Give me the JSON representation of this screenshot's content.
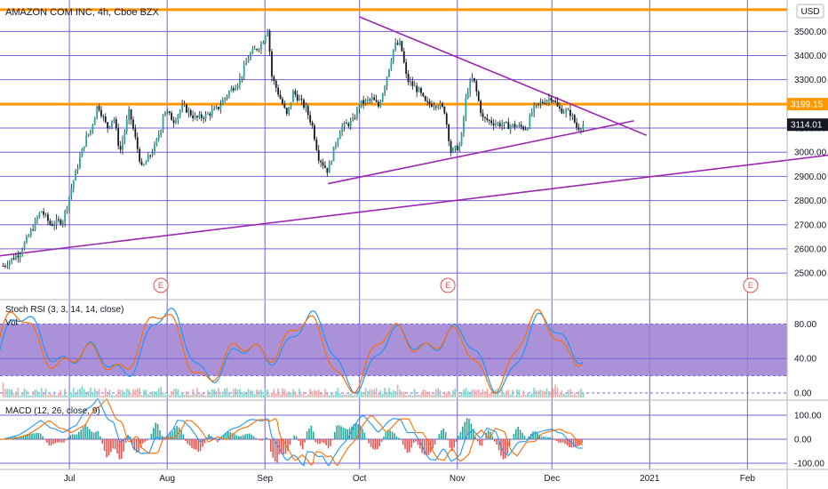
{
  "chart_data": {
    "type": "candlestick",
    "title": "AMAZON COM INC, 4h, Cboe BZX",
    "currency": "USD",
    "x_tick_labels": [
      "Jul",
      "Aug",
      "Sep",
      "Oct",
      "Nov",
      "Dec",
      "2021",
      "Feb"
    ],
    "price_axis": {
      "ticks": [
        2500,
        2600,
        2700,
        2800,
        2900,
        3000,
        3100,
        3200,
        3300,
        3400,
        3500
      ],
      "tick_labels": [
        "2500.00",
        "2600.00",
        "2700.00",
        "2800.00",
        "2900.00",
        "3000.00",
        "3100.00",
        "3200.00",
        "3300.00",
        "3400.00",
        "3500.00"
      ],
      "range": [
        2390,
        3630
      ]
    },
    "price_badges": [
      {
        "label": "3199.15",
        "value": 3199.15,
        "color": "#ff9800"
      },
      {
        "label": "3114.01",
        "value": 3114.01,
        "color": "#131722"
      }
    ],
    "horizontal_levels": [
      {
        "value": 3199.15,
        "color": "#ff9800"
      },
      {
        "value": 3590,
        "color": "#ff9800"
      }
    ],
    "trendlines": [
      {
        "from": [
          "2020-06-08",
          2570
        ],
        "to": [
          "2021-02-28",
          2990
        ],
        "color": "#9c27b0"
      },
      {
        "from": [
          "2020-09-21",
          2870
        ],
        "to": [
          "2020-12-27",
          3130
        ],
        "color": "#9c27b0"
      },
      {
        "from": [
          "2020-10-01",
          3560
        ],
        "to": [
          "2020-12-31",
          3070
        ],
        "color": "#9c27b0"
      }
    ],
    "earnings_markers": [
      "2020-07-30",
      "2020-10-29",
      "2021-02-02"
    ],
    "price_path": [
      [
        "2020-06-10",
        2530
      ],
      [
        "2020-06-15",
        2580
      ],
      [
        "2020-06-18",
        2650
      ],
      [
        "2020-06-22",
        2760
      ],
      [
        "2020-06-25",
        2700
      ],
      [
        "2020-06-29",
        2720
      ],
      [
        "2020-07-02",
        2870
      ],
      [
        "2020-07-06",
        3050
      ],
      [
        "2020-07-08",
        3100
      ],
      [
        "2020-07-10",
        3200
      ],
      [
        "2020-07-13",
        3100
      ],
      [
        "2020-07-15",
        3150
      ],
      [
        "2020-07-17",
        3000
      ],
      [
        "2020-07-20",
        3170
      ],
      [
        "2020-07-22",
        3050
      ],
      [
        "2020-07-24",
        2930
      ],
      [
        "2020-07-28",
        3020
      ],
      [
        "2020-07-30",
        3100
      ],
      [
        "2020-07-31",
        3180
      ],
      [
        "2020-08-03",
        3130
      ],
      [
        "2020-08-06",
        3190
      ],
      [
        "2020-08-10",
        3140
      ],
      [
        "2020-08-13",
        3150
      ],
      [
        "2020-08-17",
        3180
      ],
      [
        "2020-08-20",
        3240
      ],
      [
        "2020-08-24",
        3300
      ],
      [
        "2020-08-27",
        3400
      ],
      [
        "2020-08-31",
        3450
      ],
      [
        "2020-09-02",
        3520
      ],
      [
        "2020-09-03",
        3320
      ],
      [
        "2020-09-08",
        3150
      ],
      [
        "2020-09-10",
        3250
      ],
      [
        "2020-09-14",
        3180
      ],
      [
        "2020-09-16",
        3110
      ],
      [
        "2020-09-18",
        2980
      ],
      [
        "2020-09-21",
        2920
      ],
      [
        "2020-09-23",
        3020
      ],
      [
        "2020-09-25",
        3100
      ],
      [
        "2020-09-29",
        3130
      ],
      [
        "2020-10-01",
        3200
      ],
      [
        "2020-10-05",
        3220
      ],
      [
        "2020-10-07",
        3190
      ],
      [
        "2020-10-09",
        3280
      ],
      [
        "2020-10-12",
        3440
      ],
      [
        "2020-10-14",
        3450
      ],
      [
        "2020-10-16",
        3300
      ],
      [
        "2020-10-20",
        3250
      ],
      [
        "2020-10-22",
        3200
      ],
      [
        "2020-10-26",
        3200
      ],
      [
        "2020-10-28",
        3170
      ],
      [
        "2020-10-30",
        3000
      ],
      [
        "2020-11-02",
        3030
      ],
      [
        "2020-11-04",
        3250
      ],
      [
        "2020-11-06",
        3310
      ],
      [
        "2020-11-09",
        3140
      ],
      [
        "2020-11-11",
        3130
      ],
      [
        "2020-11-13",
        3120
      ],
      [
        "2020-11-17",
        3110
      ],
      [
        "2020-11-19",
        3110
      ],
      [
        "2020-11-23",
        3100
      ],
      [
        "2020-11-25",
        3180
      ],
      [
        "2020-11-27",
        3200
      ],
      [
        "2020-12-01",
        3230
      ],
      [
        "2020-12-03",
        3180
      ],
      [
        "2020-12-07",
        3160
      ],
      [
        "2020-12-09",
        3100
      ],
      [
        "2020-12-11",
        3114
      ]
    ],
    "indicators": [
      {
        "name": "Stoch RSI (3, 3, 14, 14, close)",
        "ticks": [
          0,
          40,
          80
        ],
        "tick_labels": [
          "0.00",
          "40.00",
          "80.00"
        ],
        "band": [
          20,
          80
        ],
        "series": [
          {
            "name": "K",
            "color": "#2196f3"
          },
          {
            "name": "D",
            "color": "#ff6d00"
          }
        ]
      },
      {
        "name": "Vol"
      },
      {
        "name": "MACD (12, 26, close, 9)",
        "ticks": [
          -100,
          0,
          100
        ],
        "tick_labels": [
          "-100.00",
          "0.00",
          "100.00"
        ],
        "series": [
          {
            "name": "MACD",
            "color": "#2196f3"
          },
          {
            "name": "Signal",
            "color": "#ff6d00"
          }
        ]
      }
    ]
  }
}
